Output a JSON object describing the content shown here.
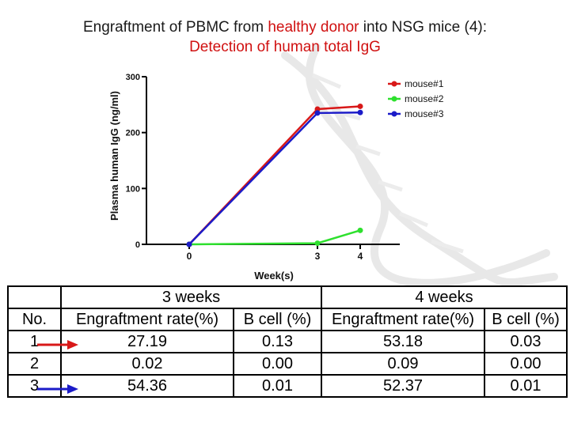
{
  "title": {
    "line1_prefix": "Engraftment of PBMC from ",
    "line1_highlight": "healthy donor",
    "line1_suffix": " into NSG mice (4):",
    "line2": "Detection of human total IgG"
  },
  "colors": {
    "mouse1": "#d81818",
    "mouse2": "#2ee02e",
    "mouse3": "#1b1bc8",
    "title_highlight": "#d01010"
  },
  "chart_data": {
    "type": "line",
    "title": "",
    "xlabel": "Week(s)",
    "ylabel": "Plasma human IgG (ng/ml)",
    "x": [
      0,
      3,
      4
    ],
    "xticks": [
      "0",
      "3",
      "4"
    ],
    "yticks": [
      "0",
      "100",
      "200",
      "300"
    ],
    "ylim": [
      0,
      300
    ],
    "grid": false,
    "legend_position": "top-right",
    "series": [
      {
        "name": "mouse#1",
        "values": [
          0,
          242,
          247
        ]
      },
      {
        "name": "mouse#2",
        "values": [
          0,
          2,
          25
        ]
      },
      {
        "name": "mouse#3",
        "values": [
          0,
          235,
          236
        ]
      }
    ]
  },
  "table": {
    "group_headers": [
      "3 weeks",
      "4 weeks"
    ],
    "columns": [
      "No.",
      "Engraftment rate(%)",
      "B cell (%)",
      "Engraftment rate(%)",
      "B cell (%)"
    ],
    "rows": [
      {
        "no": "1",
        "cells": [
          "27.19",
          "0.13",
          "53.18",
          "0.03"
        ],
        "arrow": "red"
      },
      {
        "no": "2",
        "cells": [
          "0.02",
          "0.00",
          "0.09",
          "0.00"
        ],
        "arrow": ""
      },
      {
        "no": "3",
        "cells": [
          "54.36",
          "0.01",
          "52.37",
          "0.01"
        ],
        "arrow": "blue"
      }
    ]
  }
}
